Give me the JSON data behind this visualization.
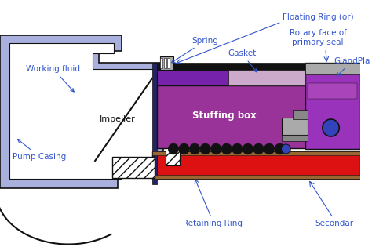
{
  "colors": {
    "light_purple": "#aab0dd",
    "medium_purple": "#aa44bb",
    "stuffing_purple": "#993399",
    "dark_purple": "#7722aa",
    "red": "#dd1111",
    "brown": "#996633",
    "gray": "#888888",
    "light_gray": "#aaaaaa",
    "black": "#111111",
    "blue_label": "#3355cc",
    "white": "#ffffff",
    "blue_circle": "#3344bb",
    "gland_purple": "#9933bb",
    "gasket_strip": "#ccaacc",
    "dark_blue": "#222266"
  },
  "labels": {
    "working_fluid": "Working fluid",
    "pump_casing": "Pump Casing",
    "impeller": "Impeller",
    "spring": "Spring",
    "gasket": "Gasket",
    "stuffing_box": "Stuffing box",
    "gland_plate": "GlandPla",
    "floating_ring": "Floating Ring (or)",
    "rotary_face_1": "Rotary face of",
    "rotary_face_2": "primary seal",
    "retaining_ring": "Retaining Ring",
    "secondary": "Secondar"
  }
}
